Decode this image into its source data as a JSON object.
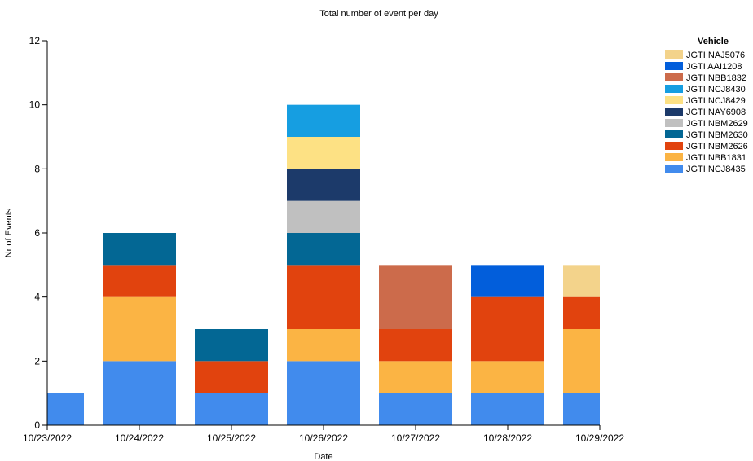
{
  "chart_data": {
    "type": "bar",
    "stacked": true,
    "title": "Total number of event per day",
    "xlabel": "Date",
    "ylabel": "Nr of Events",
    "ylim": [
      0,
      12
    ],
    "yticks": [
      0,
      2,
      4,
      6,
      8,
      10,
      12
    ],
    "grid": false,
    "legend_placement": "right",
    "legend_title": "Vehicle",
    "categories": [
      "10/23/2022",
      "10/24/2022",
      "10/25/2022",
      "10/26/2022",
      "10/27/2022",
      "10/28/2022",
      "10/29/2022"
    ],
    "legend_order": [
      "JGTI NAJ5076",
      "JGTI AAI1208",
      "JGTI NBB1832",
      "JGTI NCJ8430",
      "JGTI NCJ8429",
      "JGTI NAY6908",
      "JGTI NBM2629",
      "JGTI NBM2630",
      "JGTI NBM2626",
      "JGTI NBB1831",
      "JGTI NCJ8435"
    ],
    "series": [
      {
        "name": "JGTI NCJ8435",
        "color": "#418bed",
        "values": [
          1,
          2,
          1,
          2,
          1,
          1,
          1
        ]
      },
      {
        "name": "JGTI NBB1831",
        "color": "#fbb444",
        "values": [
          0,
          2,
          0,
          1,
          1,
          1,
          2
        ]
      },
      {
        "name": "JGTI NBM2626",
        "color": "#e1430e",
        "values": [
          0,
          1,
          1,
          2,
          1,
          2,
          1
        ]
      },
      {
        "name": "JGTI NBM2630",
        "color": "#036794",
        "values": [
          0,
          1,
          1,
          1,
          0,
          0,
          0
        ]
      },
      {
        "name": "JGTI NBM2629",
        "color": "#c0c0c0",
        "values": [
          0,
          0,
          0,
          1,
          0,
          0,
          0
        ]
      },
      {
        "name": "JGTI NAY6908",
        "color": "#1c3a6a",
        "values": [
          0,
          0,
          0,
          1,
          0,
          0,
          0
        ]
      },
      {
        "name": "JGTI NCJ8429",
        "color": "#fde184",
        "values": [
          0,
          0,
          0,
          1,
          0,
          0,
          0
        ]
      },
      {
        "name": "JGTI NCJ8430",
        "color": "#169ee1",
        "values": [
          0,
          0,
          0,
          1,
          0,
          0,
          0
        ]
      },
      {
        "name": "JGTI NBB1832",
        "color": "#cc6b4b",
        "values": [
          0,
          0,
          0,
          0,
          2,
          0,
          0
        ]
      },
      {
        "name": "JGTI AAI1208",
        "color": "#025edb",
        "values": [
          0,
          0,
          0,
          0,
          0,
          1,
          0
        ]
      },
      {
        "name": "JGTI NAJ5076",
        "color": "#f3d38b",
        "values": [
          0,
          0,
          0,
          0,
          0,
          0,
          1
        ]
      }
    ]
  }
}
